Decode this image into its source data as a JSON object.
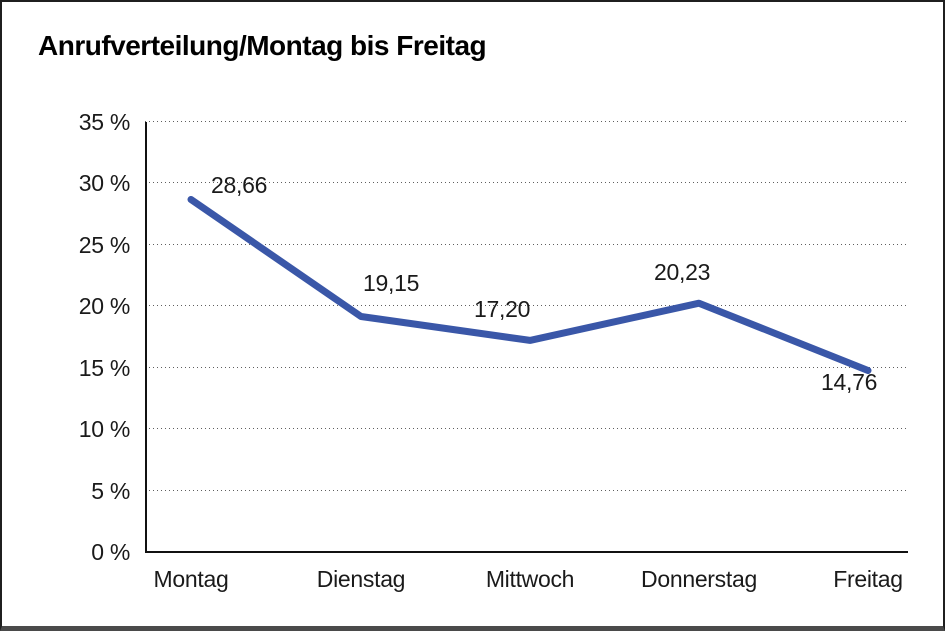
{
  "window": {
    "background": "#ffffff",
    "frame_border_color": "#1f1f1f"
  },
  "chart_data": {
    "type": "line",
    "title": "Anrufverteilung/Montag bis Freitag",
    "categories": [
      "Montag",
      "Dienstag",
      "Mittwoch",
      "Donnerstag",
      "Freitag"
    ],
    "series": [
      {
        "name": "Anrufverteilung",
        "values": [
          28.66,
          19.15,
          17.2,
          20.23,
          14.76
        ]
      }
    ],
    "data_labels": [
      "28,66",
      "19,15",
      "17,20",
      "20,23",
      "14,76"
    ],
    "y_ticks": [
      35,
      30,
      25,
      20,
      15,
      10,
      5,
      0
    ],
    "y_tick_labels": [
      "35 %",
      "30 %",
      "25 %",
      "20 %",
      "15 %",
      "10 %",
      "5 %",
      "0 %"
    ],
    "ylim": [
      0,
      35
    ],
    "xlabel": "",
    "ylabel": "",
    "grid": "horizontal-dotted",
    "legend_position": "none",
    "line_color": "#3A57A8",
    "axis_color": "#111111",
    "text_color": "#1a1a1a"
  }
}
